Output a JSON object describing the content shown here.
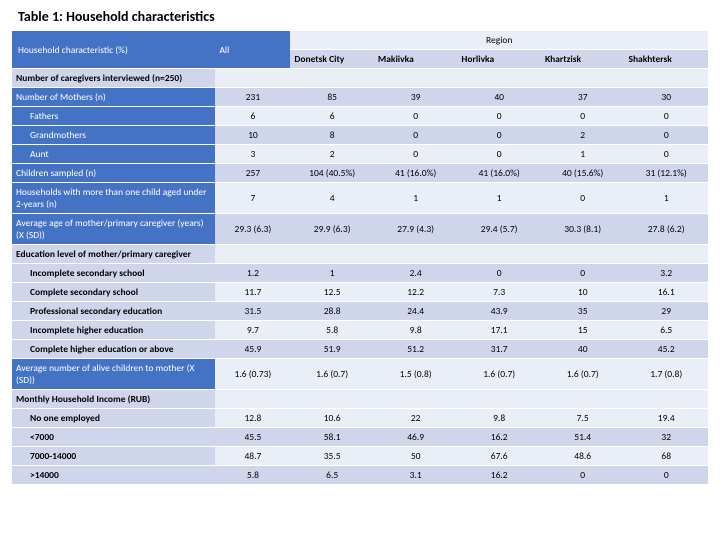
{
  "title": "Table 1: Household characteristics",
  "header": {
    "desc_label": "Household characteristic (%)",
    "all_label": "All",
    "region_label": "Region",
    "region_cols": [
      "Donetsk City",
      "Makiivka",
      "Horlivka",
      "Khartzisk",
      "Shakhtersk"
    ]
  },
  "sections": [
    {
      "type": "section",
      "label": "Number of caregivers interviewed (n=250)"
    },
    {
      "type": "row",
      "alt": 1,
      "ind": 0,
      "label": "Number of Mothers (n)",
      "vals": [
        "231",
        "85",
        "39",
        "40",
        "37",
        "30"
      ]
    },
    {
      "type": "row",
      "alt": 0,
      "ind": 1,
      "label": "Fathers",
      "vals": [
        "6",
        "6",
        "0",
        "0",
        "0",
        "0"
      ]
    },
    {
      "type": "row",
      "alt": 1,
      "ind": 1,
      "label": "Grandmothers",
      "vals": [
        "10",
        "8",
        "0",
        "0",
        "2",
        "0"
      ]
    },
    {
      "type": "row",
      "alt": 0,
      "ind": 1,
      "label": "Aunt",
      "vals": [
        "3",
        "2",
        "0",
        "0",
        "1",
        "0"
      ]
    },
    {
      "type": "row",
      "alt": 1,
      "ind": 0,
      "label": "Children sampled (n)",
      "vals": [
        "257",
        "104 (40.5%)",
        "41 (16.0%)",
        "41 (16.0%)",
        "40 (15.6%)",
        "31 (12.1%)"
      ]
    },
    {
      "type": "row",
      "alt": 0,
      "ind": 0,
      "label": "Households with more than one child aged under 2-years (n)",
      "vals": [
        "7",
        "4",
        "1",
        "1",
        "0",
        "1"
      ]
    },
    {
      "type": "row",
      "alt": 1,
      "ind": 0,
      "label": "Average age of mother/primary caregiver (years) (X (SD))",
      "vals": [
        "29.3 (6.3)",
        "29.9 (6.3)",
        "27.9 (4.3)",
        "29.4 (5.7)",
        "30.3 (8.1)",
        "27.8 (6.2)"
      ]
    },
    {
      "type": "section",
      "label": "Education level of mother/primary caregiver"
    },
    {
      "type": "row",
      "alt": 1,
      "ind": 2,
      "label": "Incomplete secondary school",
      "vals": [
        "1.2",
        "1",
        "2.4",
        "0",
        "0",
        "3.2"
      ]
    },
    {
      "type": "row",
      "alt": 0,
      "ind": 2,
      "label": "Complete secondary school",
      "vals": [
        "11.7",
        "12.5",
        "12.2",
        "7.3",
        "10",
        "16.1"
      ]
    },
    {
      "type": "row",
      "alt": 1,
      "ind": 2,
      "label": "Professional secondary education",
      "vals": [
        "31.5",
        "28.8",
        "24.4",
        "43.9",
        "35",
        "29"
      ]
    },
    {
      "type": "row",
      "alt": 0,
      "ind": 2,
      "label": "Incomplete higher education",
      "vals": [
        "9.7",
        "5.8",
        "9.8",
        "17.1",
        "15",
        "6.5"
      ]
    },
    {
      "type": "row",
      "alt": 1,
      "ind": 2,
      "label": "Complete higher education or above",
      "vals": [
        "45.9",
        "51.9",
        "51.2",
        "31.7",
        "40",
        "45.2"
      ]
    },
    {
      "type": "row",
      "alt": 0,
      "ind": 0,
      "label": "Average number of alive children to mother (X (SD))",
      "vals": [
        "1.6 (0.73)",
        "1.6 (0.7)",
        "1.5 (0.8)",
        "1.6 (0.7)",
        "1.6 (0.7)",
        "1.7 (0.8)"
      ]
    },
    {
      "type": "section",
      "label": "Monthly Household Income (RUB)"
    },
    {
      "type": "row",
      "alt": 0,
      "ind": 2,
      "label": "No one employed",
      "vals": [
        "12.8",
        "10.6",
        "22",
        "9.8",
        "7.5",
        "19.4"
      ]
    },
    {
      "type": "row",
      "alt": 1,
      "ind": 2,
      "label": "<7000",
      "vals": [
        "45.5",
        "58.1",
        "46.9",
        "16.2",
        "51.4",
        "32"
      ]
    },
    {
      "type": "row",
      "alt": 0,
      "ind": 2,
      "label": "7000-14000",
      "vals": [
        "48.7",
        "35.5",
        "50",
        "67.6",
        "48.6",
        "68"
      ]
    },
    {
      "type": "row",
      "alt": 1,
      "ind": 2,
      "label": ">14000",
      "vals": [
        "5.8",
        "6.5",
        "3.1",
        "16.2",
        "0",
        "0"
      ]
    }
  ],
  "colors": {
    "primary": "#4472c4",
    "band_dark": "#cfd5ea",
    "band_light": "#eaeff7"
  }
}
